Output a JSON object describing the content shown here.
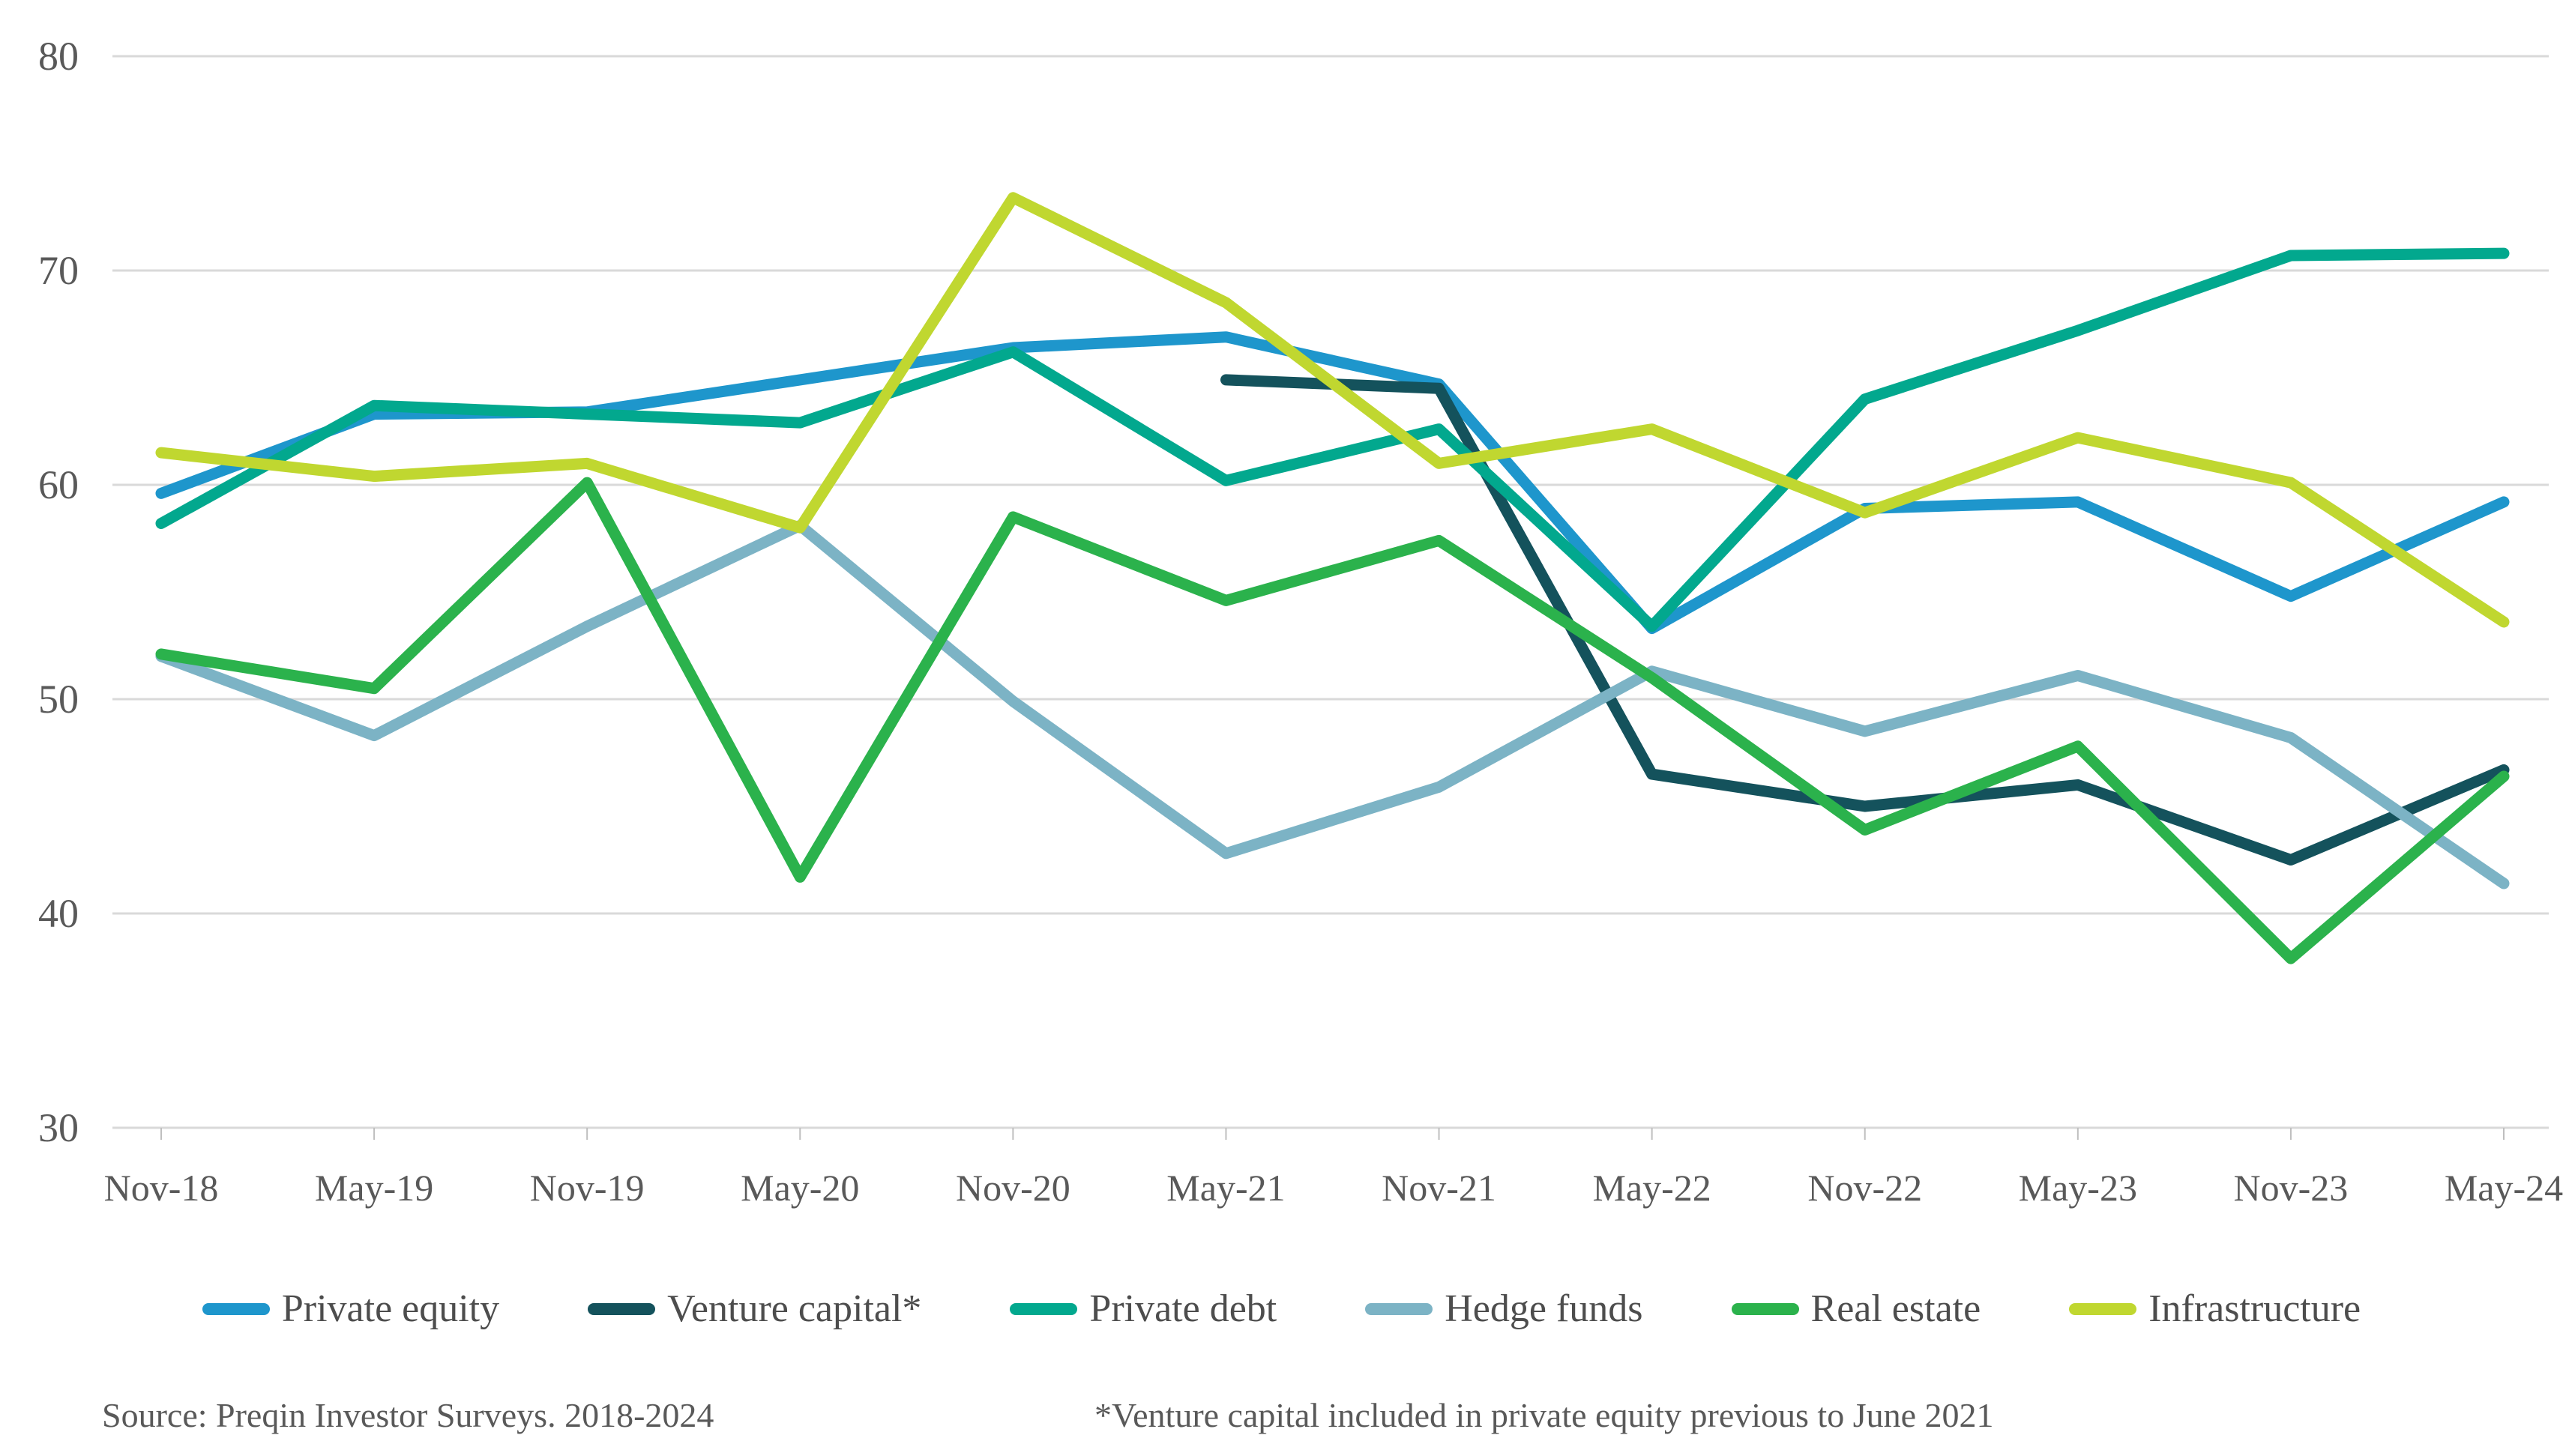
{
  "chart_data": {
    "type": "line",
    "title": "",
    "xlabel": "",
    "ylabel": "",
    "ylim": [
      30,
      80
    ],
    "yticks": [
      80,
      70,
      60,
      50,
      40,
      30
    ],
    "grid": "horizontal",
    "legend_position": "bottom",
    "categories": [
      "Nov-18",
      "May-19",
      "Nov-19",
      "May-20",
      "Nov-20",
      "May-21",
      "Nov-21",
      "May-22",
      "Nov-22",
      "May-23",
      "Nov-23",
      "May-24"
    ],
    "series": [
      {
        "name": "Private equity",
        "color": "#1e96cc",
        "values": [
          59.6,
          63.3,
          63.4,
          64.9,
          66.4,
          66.9,
          64.7,
          53.3,
          58.9,
          59.2,
          54.8,
          59.2
        ]
      },
      {
        "name": "Venture capital*",
        "color": "#14525c",
        "values": [
          null,
          null,
          null,
          null,
          null,
          64.9,
          64.5,
          46.5,
          45.0,
          46.0,
          42.5,
          46.7
        ]
      },
      {
        "name": "Private debt",
        "color": "#02a88e",
        "values": [
          58.2,
          63.7,
          63.3,
          62.9,
          66.2,
          60.2,
          62.6,
          53.4,
          64.0,
          67.2,
          70.7,
          70.8
        ]
      },
      {
        "name": "Hedge funds",
        "color": "#7cb3c5",
        "values": [
          52.0,
          48.3,
          53.4,
          58.1,
          49.9,
          42.8,
          45.9,
          51.3,
          48.5,
          51.1,
          48.2,
          41.4
        ]
      },
      {
        "name": "Real estate",
        "color": "#2bb24c",
        "values": [
          52.1,
          50.5,
          60.1,
          41.7,
          58.5,
          54.6,
          57.4,
          51.0,
          43.9,
          47.8,
          37.9,
          46.4
        ]
      },
      {
        "name": "Infrastructure",
        "color": "#c0d730",
        "values": [
          61.5,
          60.4,
          61.0,
          58.0,
          73.4,
          68.5,
          61.0,
          62.6,
          58.7,
          62.2,
          60.1,
          53.6
        ]
      }
    ],
    "style": {
      "grid_color": "#d9d9d9",
      "tick_color": "#bfbfbf",
      "axis_text_color": "#595959",
      "line_width": 15
    }
  },
  "footer": {
    "source": "Source: Preqin Investor Surveys. 2018-2024",
    "note": "*Venture capital included in private equity previous to June 2021"
  }
}
